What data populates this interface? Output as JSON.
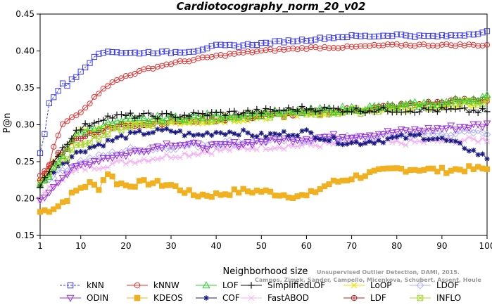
{
  "chart_data": {
    "type": "line",
    "title": "Cardiotocography_norm_20_v02",
    "xlabel": "Neighborhood size",
    "ylabel": "P@n",
    "xlim": [
      1,
      100
    ],
    "ylim": [
      0.15,
      0.45
    ],
    "xticks": [
      1,
      10,
      20,
      30,
      40,
      50,
      60,
      70,
      80,
      90,
      100
    ],
    "yticks": [
      0.15,
      0.2,
      0.25,
      0.3,
      0.35,
      0.4,
      0.45
    ],
    "legend_position": "bottom",
    "watermark": "Campos, Zimek, Sander, Campello, Micenkova, Schubert, Assent, Houle",
    "watermark_line1": "Unsupervised Outlier Detection, DAMI, 2015.",
    "series": [
      {
        "name": "kNN",
        "color": "#3a3aff",
        "marker": "square",
        "dashed": true,
        "anchors": [
          [
            1,
            0.262
          ],
          [
            2,
            0.286
          ],
          [
            3,
            0.33
          ],
          [
            4,
            0.338
          ],
          [
            5,
            0.347
          ],
          [
            6,
            0.355
          ],
          [
            7,
            0.353
          ],
          [
            8,
            0.362
          ],
          [
            9,
            0.366
          ],
          [
            10,
            0.373
          ],
          [
            12,
            0.385
          ],
          [
            14,
            0.396
          ],
          [
            16,
            0.4
          ],
          [
            20,
            0.397
          ],
          [
            25,
            0.398
          ],
          [
            30,
            0.398
          ],
          [
            35,
            0.4
          ],
          [
            40,
            0.407
          ],
          [
            45,
            0.407
          ],
          [
            50,
            0.41
          ],
          [
            55,
            0.413
          ],
          [
            60,
            0.415
          ],
          [
            65,
            0.418
          ],
          [
            70,
            0.42
          ],
          [
            75,
            0.42
          ],
          [
            80,
            0.422
          ],
          [
            85,
            0.42
          ],
          [
            90,
            0.42
          ],
          [
            95,
            0.422
          ],
          [
            100,
            0.426
          ]
        ]
      },
      {
        "name": "kNNW",
        "color": "#e83030",
        "marker": "circle",
        "dashed": false,
        "anchors": [
          [
            1,
            0.23
          ],
          [
            2,
            0.238
          ],
          [
            3,
            0.245
          ],
          [
            4,
            0.27
          ],
          [
            5,
            0.285
          ],
          [
            6,
            0.3
          ],
          [
            7,
            0.305
          ],
          [
            8,
            0.31
          ],
          [
            10,
            0.318
          ],
          [
            12,
            0.33
          ],
          [
            15,
            0.35
          ],
          [
            18,
            0.36
          ],
          [
            20,
            0.366
          ],
          [
            25,
            0.376
          ],
          [
            30,
            0.383
          ],
          [
            35,
            0.388
          ],
          [
            40,
            0.393
          ],
          [
            45,
            0.397
          ],
          [
            50,
            0.4
          ],
          [
            55,
            0.402
          ],
          [
            60,
            0.404
          ],
          [
            65,
            0.405
          ],
          [
            70,
            0.405
          ],
          [
            75,
            0.407
          ],
          [
            80,
            0.408
          ],
          [
            90,
            0.408
          ],
          [
            100,
            0.408
          ]
        ]
      },
      {
        "name": "LOF",
        "color": "#30d030",
        "marker": "triangle-up",
        "dashed": false,
        "anchors": [
          [
            1,
            0.215
          ],
          [
            3,
            0.23
          ],
          [
            5,
            0.25
          ],
          [
            8,
            0.28
          ],
          [
            10,
            0.29
          ],
          [
            15,
            0.3
          ],
          [
            20,
            0.305
          ],
          [
            30,
            0.31
          ],
          [
            40,
            0.312
          ],
          [
            50,
            0.315
          ],
          [
            60,
            0.318
          ],
          [
            70,
            0.322
          ],
          [
            80,
            0.325
          ],
          [
            90,
            0.33
          ],
          [
            100,
            0.338
          ]
        ]
      },
      {
        "name": "SimplifiedLOF",
        "color": "#111111",
        "marker": "plus",
        "dashed": false,
        "anchors": [
          [
            1,
            0.212
          ],
          [
            3,
            0.24
          ],
          [
            5,
            0.26
          ],
          [
            8,
            0.285
          ],
          [
            10,
            0.295
          ],
          [
            15,
            0.31
          ],
          [
            20,
            0.312
          ],
          [
            30,
            0.312
          ],
          [
            40,
            0.315
          ],
          [
            50,
            0.318
          ],
          [
            60,
            0.322
          ],
          [
            70,
            0.32
          ],
          [
            80,
            0.32
          ],
          [
            90,
            0.32
          ],
          [
            100,
            0.318
          ]
        ]
      },
      {
        "name": "LoOP",
        "color": "#e6e600",
        "marker": "cross",
        "dashed": false,
        "anchors": [
          [
            1,
            0.225
          ],
          [
            5,
            0.255
          ],
          [
            10,
            0.29
          ],
          [
            20,
            0.3
          ],
          [
            30,
            0.303
          ],
          [
            40,
            0.305
          ],
          [
            50,
            0.31
          ],
          [
            60,
            0.315
          ],
          [
            70,
            0.318
          ],
          [
            80,
            0.322
          ],
          [
            90,
            0.325
          ],
          [
            100,
            0.33
          ]
        ]
      },
      {
        "name": "LDOF",
        "color": "#b0b0ff",
        "marker": "diamond",
        "dashed": false,
        "anchors": [
          [
            1,
            0.22
          ],
          [
            5,
            0.235
          ],
          [
            10,
            0.25
          ],
          [
            20,
            0.265
          ],
          [
            30,
            0.27
          ],
          [
            40,
            0.275
          ],
          [
            50,
            0.278
          ],
          [
            60,
            0.28
          ],
          [
            70,
            0.282
          ],
          [
            80,
            0.285
          ],
          [
            90,
            0.288
          ],
          [
            100,
            0.29
          ]
        ]
      },
      {
        "name": "ODIN",
        "color": "#9a30d8",
        "marker": "triangle-down",
        "dashed": false,
        "anchors": [
          [
            1,
            0.195
          ],
          [
            3,
            0.21
          ],
          [
            5,
            0.225
          ],
          [
            8,
            0.238
          ],
          [
            10,
            0.245
          ],
          [
            15,
            0.255
          ],
          [
            20,
            0.26
          ],
          [
            25,
            0.268
          ],
          [
            30,
            0.275
          ],
          [
            35,
            0.272
          ],
          [
            40,
            0.27
          ],
          [
            50,
            0.278
          ],
          [
            60,
            0.282
          ],
          [
            70,
            0.285
          ],
          [
            80,
            0.29
          ],
          [
            90,
            0.295
          ],
          [
            100,
            0.3
          ]
        ]
      },
      {
        "name": "KDEOS",
        "color": "#f0b020",
        "marker": "square-filled",
        "dashed": false,
        "anchors": [
          [
            1,
            0.182
          ],
          [
            3,
            0.185
          ],
          [
            5,
            0.19
          ],
          [
            8,
            0.205
          ],
          [
            10,
            0.215
          ],
          [
            12,
            0.22
          ],
          [
            14,
            0.215
          ],
          [
            16,
            0.235
          ],
          [
            18,
            0.222
          ],
          [
            20,
            0.218
          ],
          [
            25,
            0.222
          ],
          [
            30,
            0.218
          ],
          [
            35,
            0.205
          ],
          [
            40,
            0.205
          ],
          [
            45,
            0.21
          ],
          [
            50,
            0.21
          ],
          [
            55,
            0.205
          ],
          [
            60,
            0.203
          ],
          [
            62,
            0.21
          ],
          [
            65,
            0.22
          ],
          [
            70,
            0.228
          ],
          [
            75,
            0.235
          ],
          [
            80,
            0.24
          ],
          [
            85,
            0.24
          ],
          [
            90,
            0.238
          ],
          [
            95,
            0.24
          ],
          [
            100,
            0.24
          ]
        ]
      },
      {
        "name": "COF",
        "color": "#1a1a80",
        "marker": "star",
        "dashed": false,
        "anchors": [
          [
            1,
            0.22
          ],
          [
            5,
            0.245
          ],
          [
            10,
            0.265
          ],
          [
            15,
            0.275
          ],
          [
            20,
            0.285
          ],
          [
            25,
            0.29
          ],
          [
            30,
            0.292
          ],
          [
            35,
            0.285
          ],
          [
            40,
            0.29
          ],
          [
            45,
            0.29
          ],
          [
            50,
            0.285
          ],
          [
            55,
            0.288
          ],
          [
            60,
            0.29
          ],
          [
            65,
            0.28
          ],
          [
            70,
            0.275
          ],
          [
            75,
            0.278
          ],
          [
            80,
            0.282
          ],
          [
            85,
            0.285
          ],
          [
            90,
            0.28
          ],
          [
            95,
            0.27
          ],
          [
            100,
            0.255
          ]
        ]
      },
      {
        "name": "FastABOD",
        "color": "#f4b0f4",
        "marker": "pinwheel",
        "dashed": false,
        "anchors": [
          [
            1,
            0.2
          ],
          [
            5,
            0.225
          ],
          [
            10,
            0.24
          ],
          [
            20,
            0.25
          ],
          [
            30,
            0.258
          ],
          [
            40,
            0.265
          ],
          [
            50,
            0.27
          ],
          [
            60,
            0.272
          ],
          [
            70,
            0.275
          ],
          [
            80,
            0.275
          ],
          [
            90,
            0.278
          ],
          [
            100,
            0.28
          ]
        ]
      },
      {
        "name": "LDF",
        "color": "#c02020",
        "marker": "circle-plus",
        "dashed": false,
        "anchors": [
          [
            1,
            0.225
          ],
          [
            5,
            0.26
          ],
          [
            10,
            0.285
          ],
          [
            20,
            0.3
          ],
          [
            30,
            0.305
          ],
          [
            40,
            0.308
          ],
          [
            50,
            0.312
          ],
          [
            60,
            0.315
          ],
          [
            70,
            0.32
          ],
          [
            80,
            0.325
          ],
          [
            90,
            0.33
          ],
          [
            100,
            0.335
          ]
        ]
      },
      {
        "name": "INFLO",
        "color": "#a8d830",
        "marker": "square-x",
        "dashed": false,
        "anchors": [
          [
            1,
            0.218
          ],
          [
            5,
            0.245
          ],
          [
            10,
            0.275
          ],
          [
            20,
            0.298
          ],
          [
            30,
            0.305
          ],
          [
            40,
            0.308
          ],
          [
            50,
            0.312
          ],
          [
            60,
            0.315
          ],
          [
            70,
            0.318
          ],
          [
            80,
            0.322
          ],
          [
            90,
            0.326
          ],
          [
            100,
            0.332
          ]
        ]
      }
    ]
  }
}
